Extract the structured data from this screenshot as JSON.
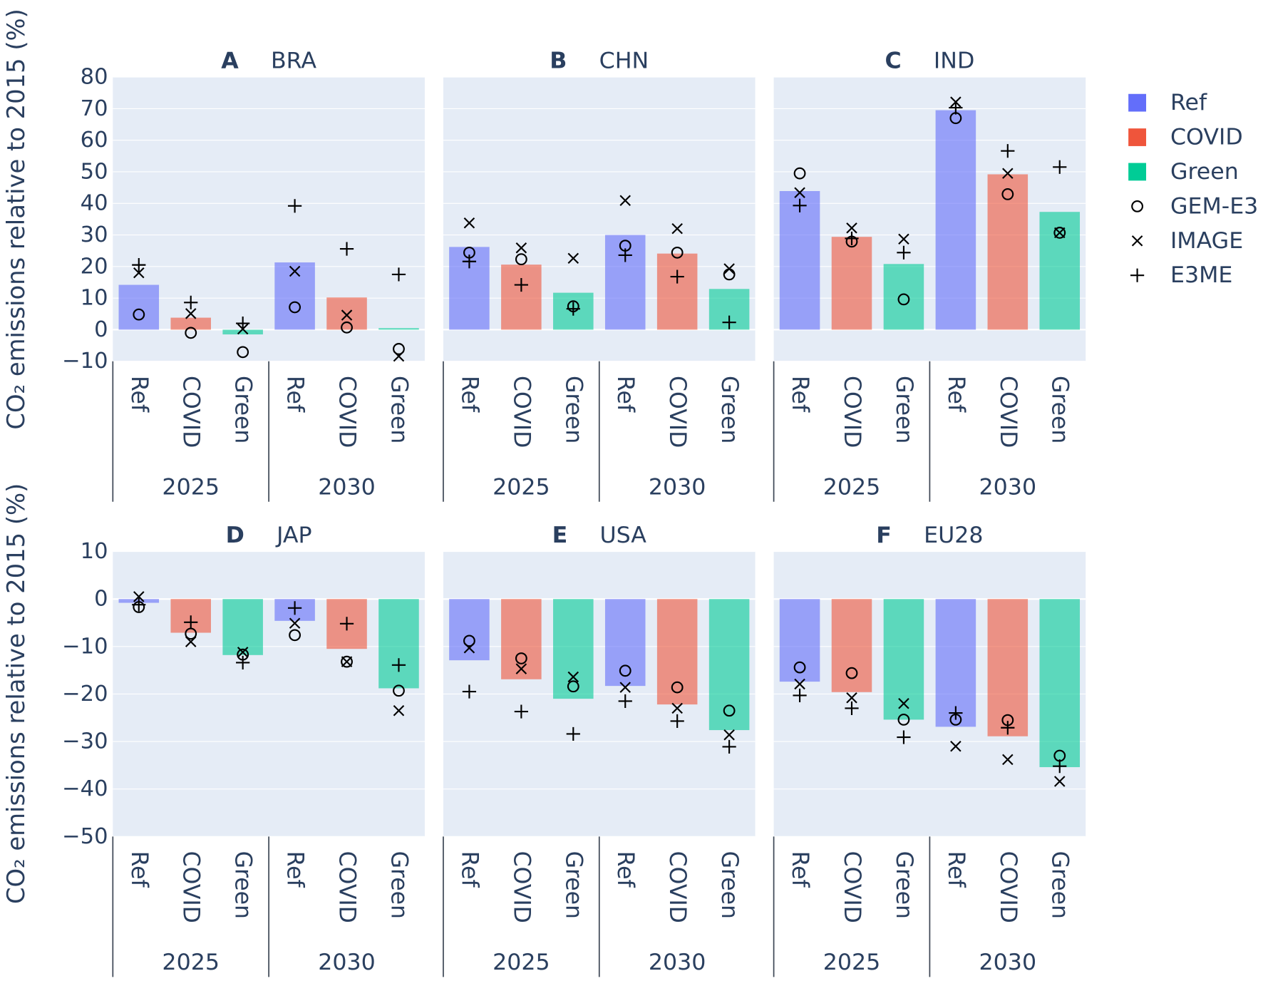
{
  "chart_data": {
    "type": "bar",
    "ylabel": "CO₂ emissions relative to 2015 (%)",
    "years": [
      "2025",
      "2030"
    ],
    "scenarios": [
      "Ref",
      "COVID",
      "Green"
    ],
    "scenario_colors": {
      "Ref": "#636EFA",
      "COVID": "#EF553B",
      "Green": "#00CC96"
    },
    "models": [
      {
        "name": "GEM-E3",
        "symbol": "circle-open"
      },
      {
        "name": "IMAGE",
        "symbol": "x-thin"
      },
      {
        "name": "E3ME",
        "symbol": "cross-thin"
      }
    ],
    "legend_position": "right",
    "yaxes": [
      {
        "range": [
          -10,
          80
        ],
        "ticks": [
          80,
          70,
          60,
          50,
          40,
          30,
          20,
          10,
          0,
          -10
        ],
        "tick_labels": [
          "80",
          "70",
          "60",
          "50",
          "40",
          "30",
          "20",
          "10",
          "0",
          "−10"
        ]
      },
      {
        "range": [
          -50,
          10
        ],
        "ticks": [
          10,
          0,
          -10,
          -20,
          -30,
          -40,
          -50
        ],
        "tick_labels": [
          "10",
          "0",
          "−10",
          "−20",
          "−30",
          "−40",
          "−50"
        ]
      }
    ],
    "panels": [
      {
        "letter": "A",
        "region": "BRA",
        "yaxis": 0,
        "bars": [
          14.2,
          3.8,
          -1.5,
          21.3,
          10.2,
          0.5
        ],
        "models": {
          "GEM-E3": [
            4.8,
            -1.0,
            -7.1,
            7.1,
            0.7,
            -6.1
          ],
          "IMAGE": [
            18.0,
            5.1,
            0.2,
            18.5,
            4.6,
            -8.4
          ],
          "E3ME": [
            20.5,
            8.6,
            2.0,
            39.2,
            25.6,
            17.5
          ]
        }
      },
      {
        "letter": "B",
        "region": "CHN",
        "yaxis": 0,
        "bars": [
          26.2,
          20.6,
          11.7,
          30.0,
          24.1,
          12.9
        ],
        "models": {
          "GEM-E3": [
            24.4,
            22.3,
            7.4,
            26.6,
            24.4,
            17.5
          ],
          "IMAGE": [
            33.8,
            25.9,
            22.6,
            40.9,
            32.0,
            19.3
          ],
          "E3ME": [
            21.6,
            14.2,
            6.6,
            23.6,
            16.8,
            2.3
          ]
        }
      },
      {
        "letter": "C",
        "region": "IND",
        "yaxis": 0,
        "bars": [
          43.9,
          29.4,
          20.8,
          69.5,
          49.2,
          37.3
        ],
        "models": {
          "GEM-E3": [
            49.5,
            27.9,
            9.6,
            67.0,
            42.9,
            30.7
          ],
          "IMAGE": [
            43.4,
            32.2,
            28.7,
            72.1,
            49.5,
            30.7
          ],
          "E3ME": [
            39.3,
            28.9,
            24.4,
            70.3,
            56.6,
            51.5
          ]
        }
      },
      {
        "letter": "D",
        "region": "JAP",
        "yaxis": 1,
        "bars": [
          -0.8,
          -7.1,
          -11.8,
          -4.6,
          -10.5,
          -18.8
        ],
        "models": {
          "GEM-E3": [
            -1.7,
            -7.3,
            -11.7,
            -7.6,
            -13.2,
            -19.3
          ],
          "IMAGE": [
            0.5,
            -9.0,
            -11.2,
            -5.1,
            -13.2,
            -23.5
          ],
          "E3ME": [
            -1.2,
            -4.9,
            -13.4,
            -1.9,
            -5.2,
            -13.9
          ]
        }
      },
      {
        "letter": "E",
        "region": "USA",
        "yaxis": 1,
        "bars": [
          -12.9,
          -16.9,
          -21.0,
          -18.3,
          -22.2,
          -27.6
        ],
        "models": {
          "GEM-E3": [
            -8.8,
            -12.5,
            -18.4,
            -15.1,
            -18.6,
            -23.5
          ],
          "IMAGE": [
            -10.3,
            -14.7,
            -16.4,
            -18.6,
            -23.0,
            -28.6
          ],
          "E3ME": [
            -19.5,
            -23.7,
            -28.4,
            -21.5,
            -25.7,
            -31.1
          ]
        }
      },
      {
        "letter": "F",
        "region": "EU28",
        "yaxis": 1,
        "bars": [
          -17.4,
          -19.6,
          -25.4,
          -26.9,
          -28.9,
          -35.4
        ],
        "models": {
          "GEM-E3": [
            -14.4,
            -15.6,
            -25.4,
            -25.4,
            -25.5,
            -33.0
          ],
          "IMAGE": [
            -17.9,
            -20.8,
            -22.0,
            -31.0,
            -33.8,
            -38.4
          ],
          "E3ME": [
            -20.3,
            -23.0,
            -29.1,
            -24.0,
            -27.1,
            -35.2
          ]
        }
      }
    ]
  },
  "style": {
    "text_color": "#2a3f5f",
    "plot_bg": "#E5ECF6",
    "grid_color": "#FFFFFF",
    "marker_color": "#000000",
    "bar_opacity": 0.6
  }
}
